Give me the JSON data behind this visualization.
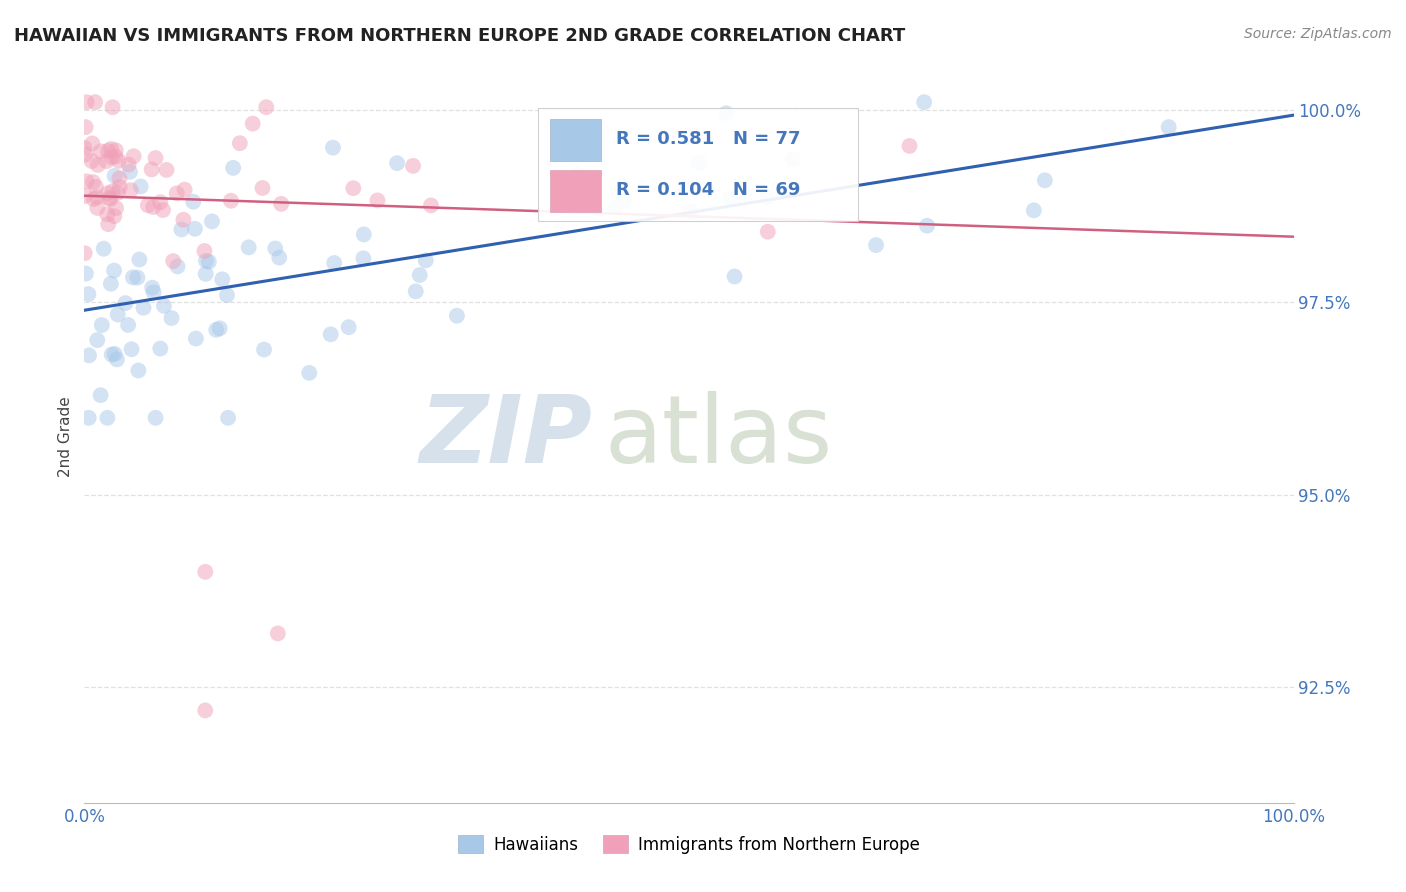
{
  "title": "HAWAIIAN VS IMMIGRANTS FROM NORTHERN EUROPE 2ND GRADE CORRELATION CHART",
  "source": "Source: ZipAtlas.com",
  "ylabel": "2nd Grade",
  "xlim": [
    0.0,
    1.0
  ],
  "ylim": [
    0.91,
    1.005
  ],
  "yticks": [
    0.925,
    0.95,
    0.975,
    1.0
  ],
  "ytick_labels": [
    "92.5%",
    "95.0%",
    "97.5%",
    "100.0%"
  ],
  "xticks": [
    0.0,
    1.0
  ],
  "xtick_labels": [
    "0.0%",
    "100.0%"
  ],
  "blue_R": 0.581,
  "blue_N": 77,
  "pink_R": 0.104,
  "pink_N": 69,
  "blue_color": "#A8C8E8",
  "pink_color": "#F0A0B8",
  "blue_line_color": "#3060B0",
  "pink_line_color": "#D06080",
  "legend_label_blue": "Hawaiians",
  "legend_label_pink": "Immigrants from Northern Europe",
  "background_color": "#FFFFFF",
  "watermark_zip": "ZIP",
  "watermark_atlas": "atlas",
  "watermark_color_zip": "#C5D5E5",
  "watermark_color_atlas": "#C0CCB8",
  "grid_color": "#DDDDDD",
  "title_color": "#222222",
  "axis_label_color": "#444444",
  "tick_label_color": "#4477BB",
  "dot_size": 130,
  "dot_alpha": 0.5,
  "box_blue_color": "#A8C8E8",
  "box_pink_color": "#F0A0B8",
  "box_text_color": "#4477BB"
}
